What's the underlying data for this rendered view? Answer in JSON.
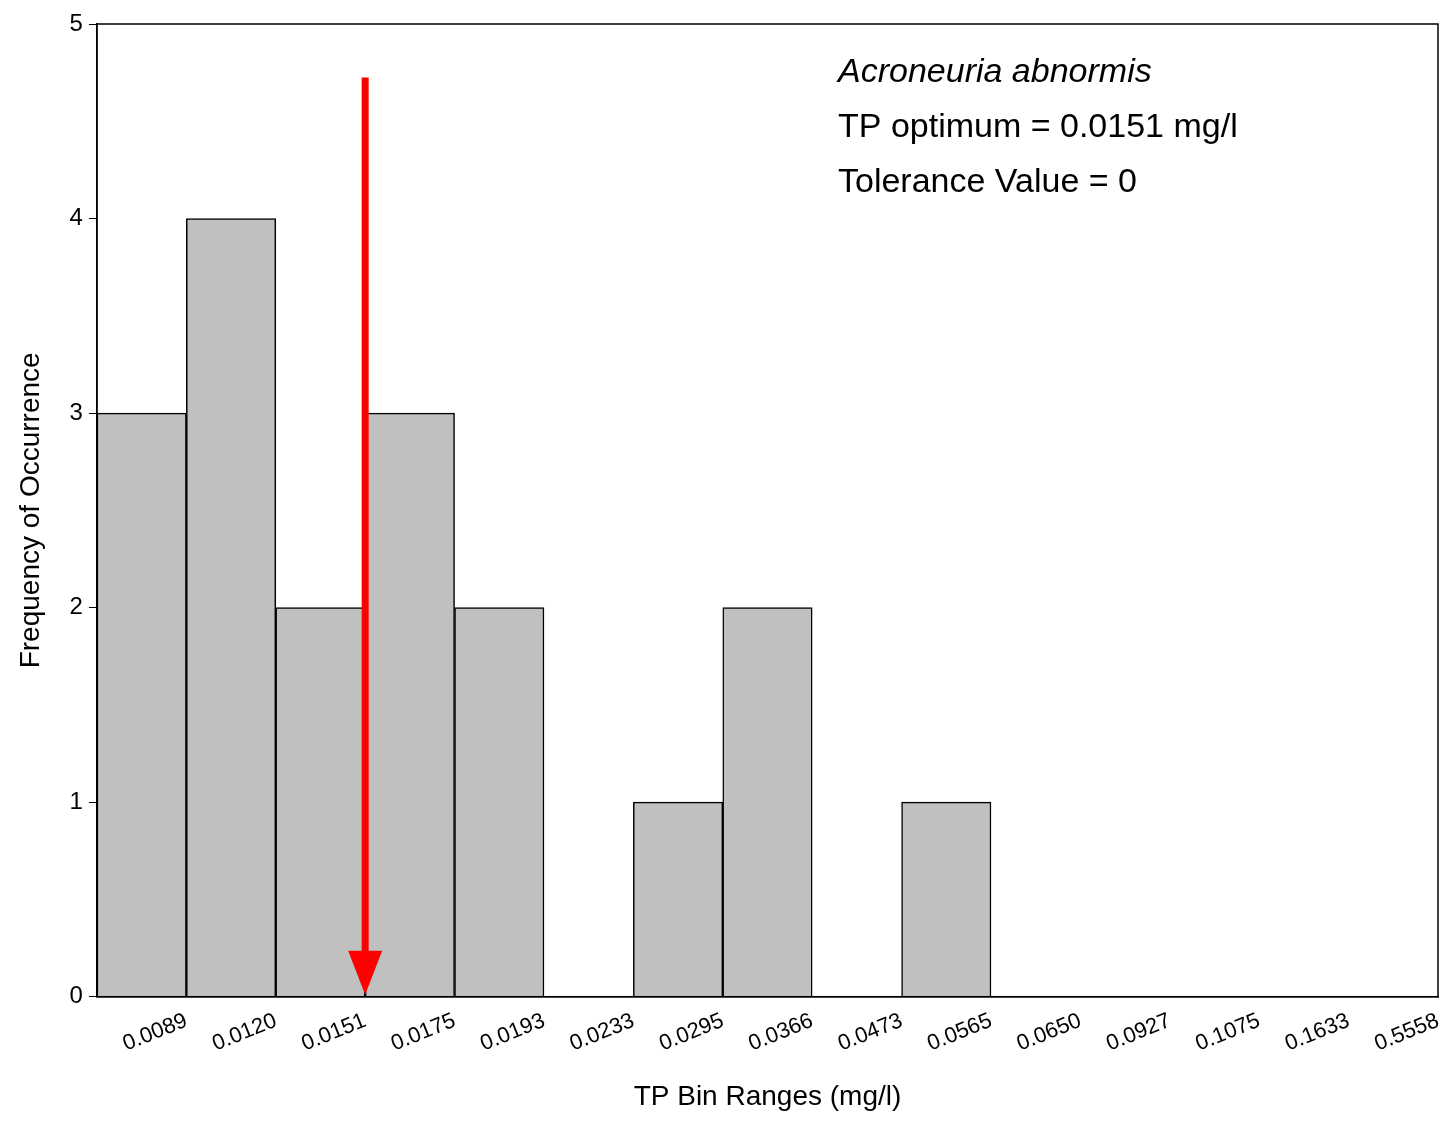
{
  "chart_data": {
    "type": "histogram",
    "species": "Acroneuria abnormis",
    "annotations": [
      "TP optimum = 0.0151 mg/l",
      "Tolerance Value = 0"
    ],
    "optimum": 0.0151,
    "xlabel": "TP Bin Ranges (mg/l)",
    "ylabel": "Frequency of Occurrence",
    "bins": [
      null,
      "0.0089",
      "0.0120",
      "0.0151",
      "0.0175",
      "0.0193",
      "0.0233",
      "0.0295",
      "0.0366",
      "0.0473",
      "0.0565",
      "0.0650",
      "0.0927",
      "0.1075",
      "0.1633",
      "0.5558"
    ],
    "values": [
      3,
      4,
      2,
      3,
      2,
      0,
      1,
      2,
      0,
      1,
      0,
      0,
      0,
      0,
      0
    ],
    "color": "#c0c0c0",
    "ylim": [
      0,
      5
    ],
    "yticks": [
      0,
      1,
      2,
      3,
      4,
      5
    ],
    "grid": false
  }
}
